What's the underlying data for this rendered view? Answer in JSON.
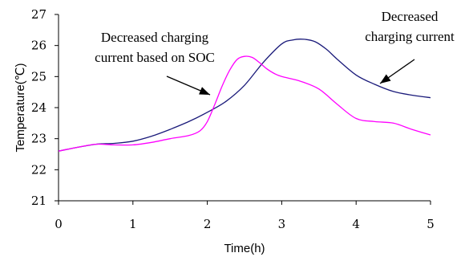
{
  "chart_data": {
    "type": "line",
    "xlabel": "Time(h)",
    "ylabel": "Temperature(℃)",
    "xlim": [
      0,
      5
    ],
    "ylim": [
      21,
      27
    ],
    "xticks": [
      "0",
      "1",
      "2",
      "3",
      "4",
      "5"
    ],
    "yticks": [
      "21",
      "22",
      "23",
      "24",
      "25",
      "26",
      "27"
    ],
    "grid": false,
    "series": [
      {
        "color": "#1a1a7a",
        "x": [
          0,
          0.25,
          0.5,
          0.75,
          1.0,
          1.25,
          1.5,
          1.75,
          2.0,
          2.25,
          2.5,
          2.75,
          3.0,
          3.15,
          3.3,
          3.45,
          3.6,
          3.75,
          4.0,
          4.25,
          4.5,
          4.75,
          5.0
        ],
        "y": [
          22.6,
          22.72,
          22.82,
          22.85,
          22.92,
          23.08,
          23.3,
          23.55,
          23.85,
          24.2,
          24.72,
          25.45,
          26.05,
          26.18,
          26.2,
          26.12,
          25.88,
          25.55,
          25.05,
          24.75,
          24.52,
          24.4,
          24.32
        ]
      },
      {
        "color": "#ff00ff",
        "x": [
          0,
          0.25,
          0.5,
          0.75,
          1.0,
          1.25,
          1.5,
          1.75,
          1.9,
          2.0,
          2.1,
          2.2,
          2.3,
          2.4,
          2.5,
          2.6,
          2.7,
          2.8,
          2.9,
          3.0,
          3.25,
          3.5,
          3.75,
          4.0,
          4.25,
          4.5,
          4.75,
          5.0
        ],
        "y": [
          22.6,
          22.72,
          22.82,
          22.8,
          22.8,
          22.88,
          23.0,
          23.1,
          23.25,
          23.55,
          24.1,
          24.7,
          25.2,
          25.55,
          25.65,
          25.62,
          25.45,
          25.25,
          25.1,
          25.0,
          24.85,
          24.6,
          24.1,
          23.65,
          23.55,
          23.5,
          23.3,
          23.12
        ]
      }
    ],
    "annotations": [
      {
        "lines": [
          "Decreased charging",
          "current based on SOC"
        ],
        "target_series": 1
      },
      {
        "lines": [
          "Decreased",
          "charging current"
        ],
        "target_series": 0
      }
    ]
  }
}
